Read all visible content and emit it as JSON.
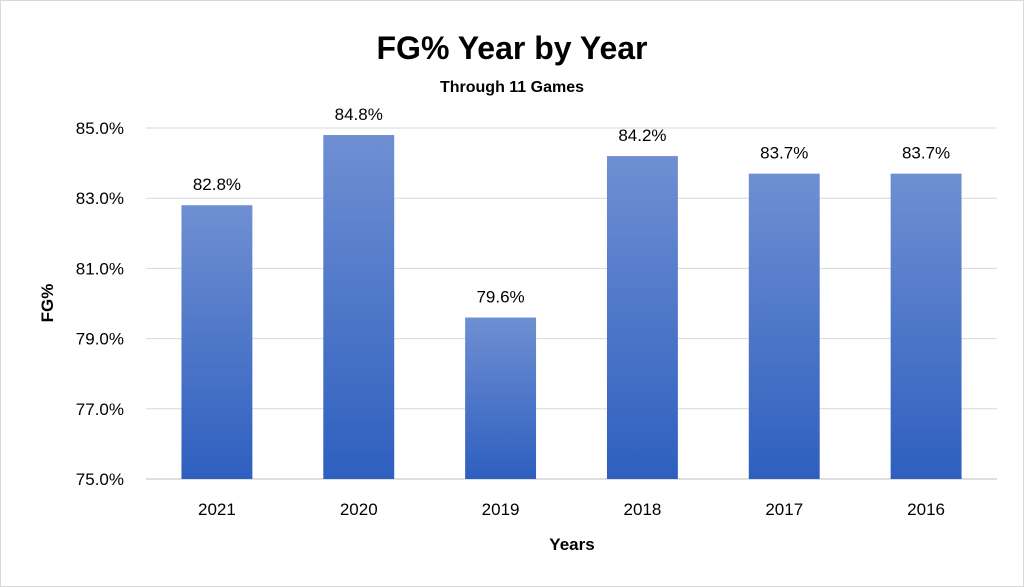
{
  "chart_data": {
    "type": "bar",
    "title": "FG% Year by Year",
    "subtitle": "Through 11 Games",
    "xlabel": "Years",
    "ylabel": "FG%",
    "categories": [
      "2021",
      "2020",
      "2019",
      "2018",
      "2017",
      "2016"
    ],
    "values": [
      82.8,
      84.8,
      79.6,
      84.2,
      83.7,
      83.7
    ],
    "data_labels": [
      "82.8%",
      "84.8%",
      "79.6%",
      "84.2%",
      "83.7%",
      "83.7%"
    ],
    "ylim": [
      75,
      85
    ],
    "yticks": [
      75,
      77,
      79,
      81,
      83,
      85
    ],
    "ytick_labels": [
      "75.0%",
      "77.0%",
      "79.0%",
      "81.0%",
      "83.0%",
      "85.0%"
    ],
    "grid": true,
    "legend": "none",
    "bar_color_top": "#6f8fd2",
    "bar_color_bottom": "#2e5fbf"
  }
}
